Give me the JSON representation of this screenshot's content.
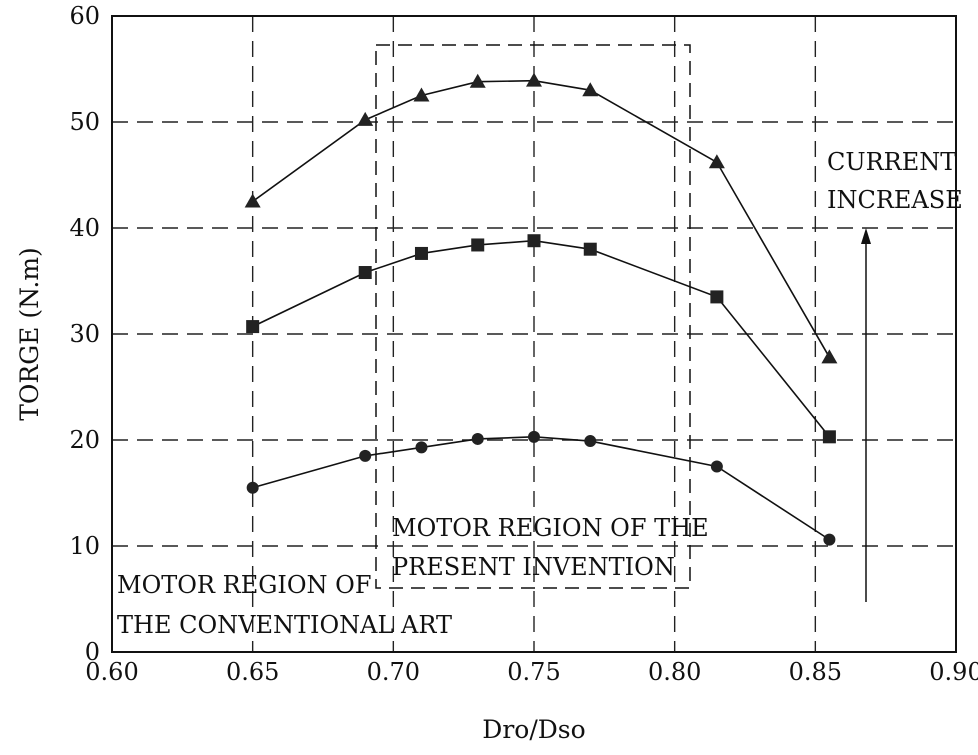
{
  "chart_data": {
    "type": "line",
    "title": "",
    "xlabel": "Dro/Dso",
    "ylabel": "TORGE (N.m)",
    "xlim": [
      0.6,
      0.9
    ],
    "ylim": [
      0,
      60
    ],
    "x_ticks": [
      "0.60",
      "0.65",
      "0.70",
      "0.75",
      "0.80",
      "0.85",
      "0.90"
    ],
    "y_ticks": [
      "0",
      "10",
      "20",
      "30",
      "40",
      "50",
      "60"
    ],
    "grid": "dashed",
    "x": [
      0.65,
      0.69,
      0.71,
      0.73,
      0.75,
      0.77,
      0.815,
      0.855
    ],
    "series": [
      {
        "marker": "triangle",
        "values": [
          42.5,
          50.2,
          52.5,
          53.8,
          53.9,
          53.0,
          46.2,
          27.8
        ]
      },
      {
        "marker": "square",
        "values": [
          30.7,
          35.8,
          37.6,
          38.4,
          38.8,
          38.0,
          33.5,
          20.3
        ]
      },
      {
        "marker": "circle",
        "values": [
          15.5,
          18.5,
          19.3,
          20.1,
          20.3,
          19.9,
          17.5,
          10.6
        ]
      }
    ],
    "annotations": {
      "present_region": {
        "lines": [
          "MOTOR REGION OF THE",
          "PRESENT INVENTION"
        ]
      },
      "conventional_region": {
        "lines": [
          "MOTOR REGION OF",
          "THE CONVENTIONAL ART"
        ]
      },
      "current_increase": {
        "lines": [
          "CURRENT",
          "INCREASE"
        ]
      }
    },
    "colors": {
      "line": "#111111",
      "grid": "#222222"
    }
  }
}
